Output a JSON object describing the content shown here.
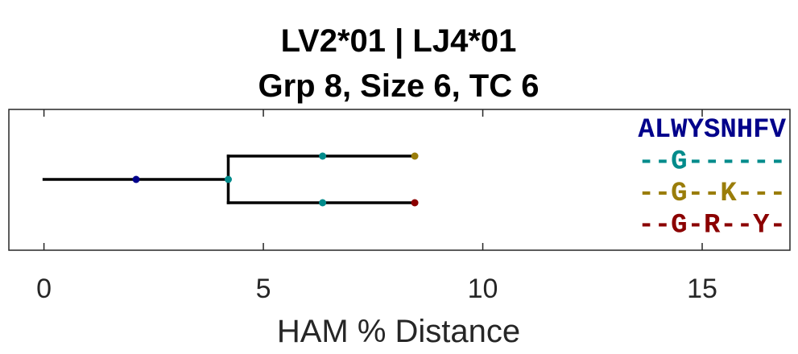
{
  "chart_data": {
    "type": "dendrogram",
    "title_lines": [
      "LV2*01 | LJ4*01",
      "Grp 8, Size 6, TC 6"
    ],
    "xlabel": "HAM % Distance",
    "xlim": [
      -0.8,
      17
    ],
    "xticks": [
      0,
      5,
      10,
      15
    ],
    "xtick_labels": [
      "0",
      "5",
      "10",
      "15"
    ],
    "grid": false,
    "branches": [
      {
        "x1": 0,
        "x2": 4.2,
        "y1": 0.5,
        "y2": 0.5
      },
      {
        "x1": 4.2,
        "x2": 4.2,
        "y1": 0,
        "y2": 1
      },
      {
        "x1": 4.2,
        "x2": 8.45,
        "y1": 0,
        "y2": 0
      },
      {
        "x1": 4.2,
        "x2": 8.45,
        "y1": 1,
        "y2": 1
      }
    ],
    "nodes": [
      {
        "x": 2.1,
        "y": 0.5,
        "color": "#00008b"
      },
      {
        "x": 4.2,
        "y": 0.5,
        "color": "#008b8b"
      },
      {
        "x": 6.35,
        "y": 0,
        "color": "#008b8b"
      },
      {
        "x": 6.35,
        "y": 1,
        "color": "#008b8b"
      },
      {
        "x": 8.45,
        "y": 0,
        "color": "#9a7d0a"
      },
      {
        "x": 8.45,
        "y": 1,
        "color": "#8b0000"
      }
    ],
    "sequences": [
      {
        "text": "ALWYSNHFV",
        "color": "#00008b"
      },
      {
        "text": "--G------",
        "color": "#008b8b"
      },
      {
        "text": "--G--K---",
        "color": "#9a7d0a"
      },
      {
        "text": "--G-R--Y-",
        "color": "#8b0000"
      }
    ]
  }
}
